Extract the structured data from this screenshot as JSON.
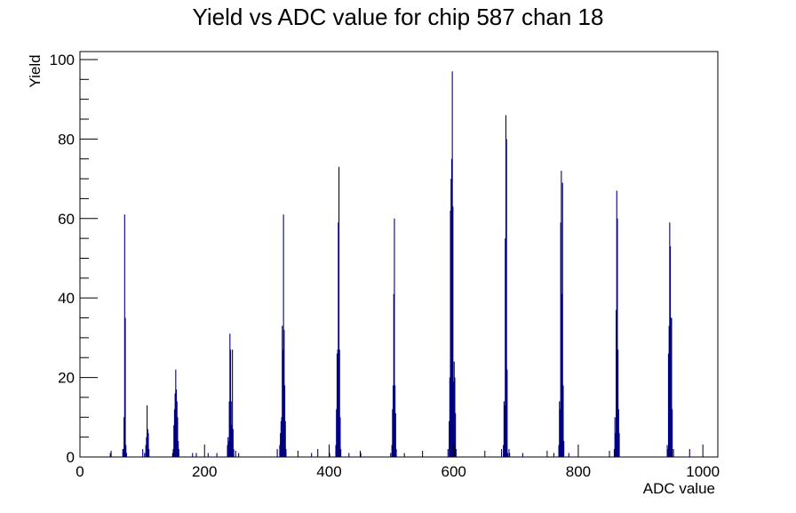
{
  "chart_data": {
    "type": "bar",
    "title": "Yield vs ADC value for chip 587 chan 18",
    "xlabel": "ADC value",
    "ylabel": "Yield",
    "xlim": [
      0,
      1024
    ],
    "ylim": [
      0,
      102
    ],
    "grid": false,
    "bar_color": "#000080",
    "xticks": [
      {
        "value": 0,
        "label": "0"
      },
      {
        "value": 200,
        "label": "200"
      },
      {
        "value": 400,
        "label": "400"
      },
      {
        "value": 600,
        "label": "600"
      },
      {
        "value": 800,
        "label": "800"
      },
      {
        "value": 1000,
        "label": "1000"
      }
    ],
    "yticks": [
      {
        "value": 0,
        "label": "0"
      },
      {
        "value": 20,
        "label": "20"
      },
      {
        "value": 40,
        "label": "40"
      },
      {
        "value": 60,
        "label": "60"
      },
      {
        "value": 80,
        "label": "80"
      },
      {
        "value": 100,
        "label": "100"
      }
    ],
    "bins": [
      [
        48,
        1
      ],
      [
        68,
        2
      ],
      [
        69,
        2
      ],
      [
        70,
        10
      ],
      [
        71,
        61
      ],
      [
        72,
        35
      ],
      [
        73,
        3
      ],
      [
        74,
        1
      ],
      [
        100,
        2
      ],
      [
        103,
        1
      ],
      [
        105,
        3
      ],
      [
        106,
        5
      ],
      [
        107,
        13
      ],
      [
        108,
        7
      ],
      [
        109,
        6
      ],
      [
        110,
        2
      ],
      [
        148,
        1
      ],
      [
        149,
        2
      ],
      [
        150,
        8
      ],
      [
        151,
        12
      ],
      [
        152,
        16
      ],
      [
        153,
        22
      ],
      [
        154,
        17
      ],
      [
        155,
        14
      ],
      [
        156,
        10
      ],
      [
        157,
        4
      ],
      [
        158,
        2
      ],
      [
        180,
        1
      ],
      [
        186,
        1
      ],
      [
        205,
        1
      ],
      [
        219,
        1
      ],
      [
        236,
        3
      ],
      [
        237,
        5
      ],
      [
        238,
        4
      ],
      [
        239,
        14
      ],
      [
        240,
        31
      ],
      [
        241,
        27
      ],
      [
        242,
        14
      ],
      [
        243,
        8
      ],
      [
        244,
        27
      ],
      [
        245,
        7
      ],
      [
        246,
        2
      ],
      [
        254,
        1
      ],
      [
        316,
        2
      ],
      [
        320,
        3
      ],
      [
        321,
        6
      ],
      [
        322,
        9
      ],
      [
        323,
        10
      ],
      [
        324,
        33
      ],
      [
        325,
        27
      ],
      [
        326,
        61
      ],
      [
        327,
        32
      ],
      [
        328,
        18
      ],
      [
        329,
        9
      ],
      [
        330,
        2
      ],
      [
        371,
        1
      ],
      [
        381,
        2
      ],
      [
        400,
        1
      ],
      [
        410,
        3
      ],
      [
        411,
        12
      ],
      [
        412,
        26
      ],
      [
        413,
        27
      ],
      [
        414,
        59
      ],
      [
        415,
        73
      ],
      [
        416,
        27
      ],
      [
        417,
        10
      ],
      [
        418,
        2
      ],
      [
        431,
        1
      ],
      [
        450,
        1
      ],
      [
        498,
        1
      ],
      [
        500,
        3
      ],
      [
        501,
        12
      ],
      [
        502,
        18
      ],
      [
        503,
        41
      ],
      [
        504,
        60
      ],
      [
        505,
        18
      ],
      [
        506,
        11
      ],
      [
        507,
        2
      ],
      [
        520,
        1
      ],
      [
        590,
        2
      ],
      [
        592,
        9
      ],
      [
        593,
        20
      ],
      [
        594,
        62
      ],
      [
        595,
        70
      ],
      [
        596,
        75
      ],
      [
        597,
        97
      ],
      [
        598,
        63
      ],
      [
        599,
        19
      ],
      [
        600,
        24
      ],
      [
        601,
        20
      ],
      [
        602,
        11
      ],
      [
        603,
        2
      ],
      [
        676,
        2
      ],
      [
        679,
        3
      ],
      [
        680,
        14
      ],
      [
        681,
        13
      ],
      [
        682,
        55
      ],
      [
        683,
        86
      ],
      [
        684,
        80
      ],
      [
        685,
        22
      ],
      [
        686,
        1
      ],
      [
        688,
        2
      ],
      [
        689,
        1
      ],
      [
        710,
        1
      ],
      [
        760,
        1
      ],
      [
        768,
        3
      ],
      [
        769,
        14
      ],
      [
        770,
        12
      ],
      [
        771,
        59
      ],
      [
        772,
        72
      ],
      [
        773,
        41
      ],
      [
        774,
        69
      ],
      [
        775,
        18
      ],
      [
        776,
        4
      ],
      [
        784,
        1
      ],
      [
        857,
        2
      ],
      [
        858,
        10
      ],
      [
        859,
        6
      ],
      [
        860,
        37
      ],
      [
        861,
        67
      ],
      [
        862,
        60
      ],
      [
        863,
        27
      ],
      [
        864,
        12
      ],
      [
        865,
        6
      ],
      [
        942,
        3
      ],
      [
        943,
        2
      ],
      [
        944,
        26
      ],
      [
        945,
        33
      ],
      [
        946,
        59
      ],
      [
        947,
        53
      ],
      [
        948,
        35
      ],
      [
        949,
        35
      ],
      [
        950,
        12
      ],
      [
        952,
        2
      ],
      [
        978,
        2
      ]
    ]
  }
}
